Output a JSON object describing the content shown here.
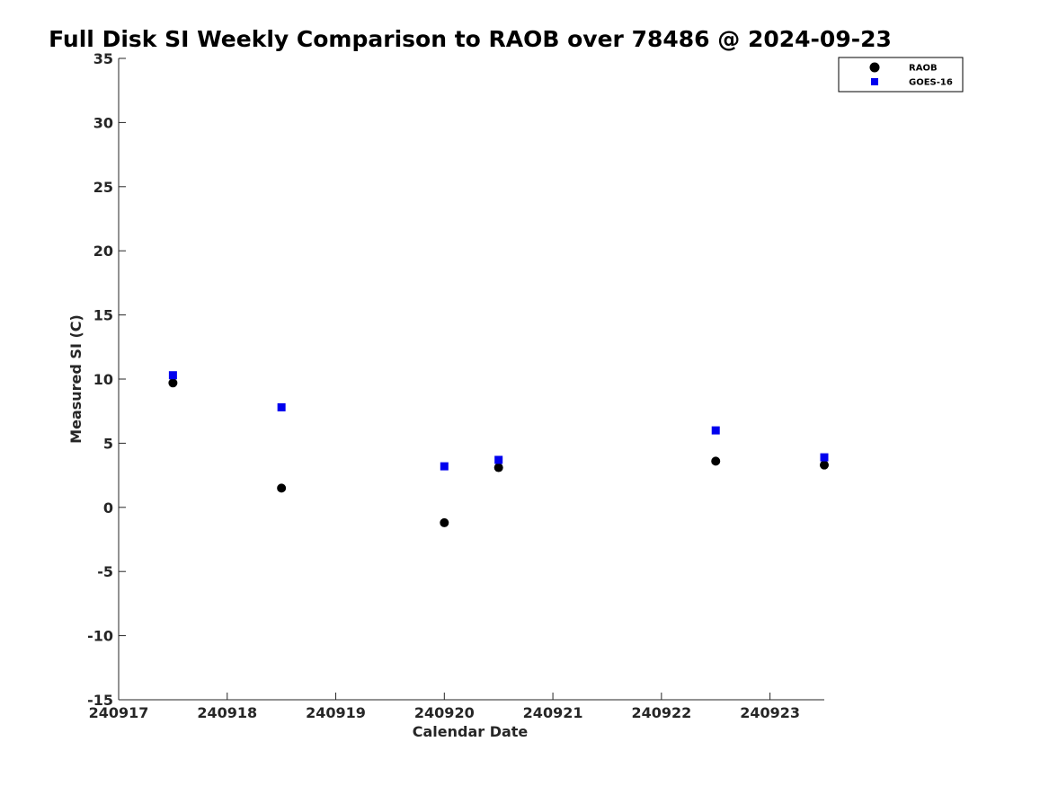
{
  "chart_data": {
    "type": "scatter",
    "title": "Full Disk SI Weekly Comparison to RAOB over 78486 @ 2024-09-23",
    "xlabel": "Calendar Date",
    "ylabel": "Measured SI (C)",
    "xlim": [
      240917,
      240923.5
    ],
    "ylim": [
      -15,
      35
    ],
    "xticks": [
      240917,
      240918,
      240919,
      240920,
      240921,
      240922,
      240923
    ],
    "xtick_labels": [
      "240917",
      "240918",
      "240919",
      "240920",
      "240921",
      "240922",
      "240923"
    ],
    "yticks": [
      -15,
      -10,
      -5,
      0,
      5,
      10,
      15,
      20,
      25,
      30,
      35
    ],
    "ytick_labels": [
      "-15",
      "-10",
      "-5",
      "0",
      "5",
      "10",
      "15",
      "20",
      "25",
      "30",
      "35"
    ],
    "grid": false,
    "legend_position": "top-right",
    "series": [
      {
        "name": "RAOB",
        "marker": "circle",
        "color": "#000000",
        "x": [
          240917.5,
          240918.5,
          240920,
          240920.5,
          240922.5,
          240923.5
        ],
        "y": [
          9.7,
          1.5,
          -1.2,
          3.1,
          3.6,
          3.3
        ]
      },
      {
        "name": "GOES-16",
        "marker": "square",
        "color": "#0000ee",
        "x": [
          240917.5,
          240918.5,
          240920,
          240920.5,
          240922.5,
          240923.5
        ],
        "y": [
          10.3,
          7.8,
          3.2,
          3.7,
          6.0,
          3.9
        ]
      }
    ]
  }
}
